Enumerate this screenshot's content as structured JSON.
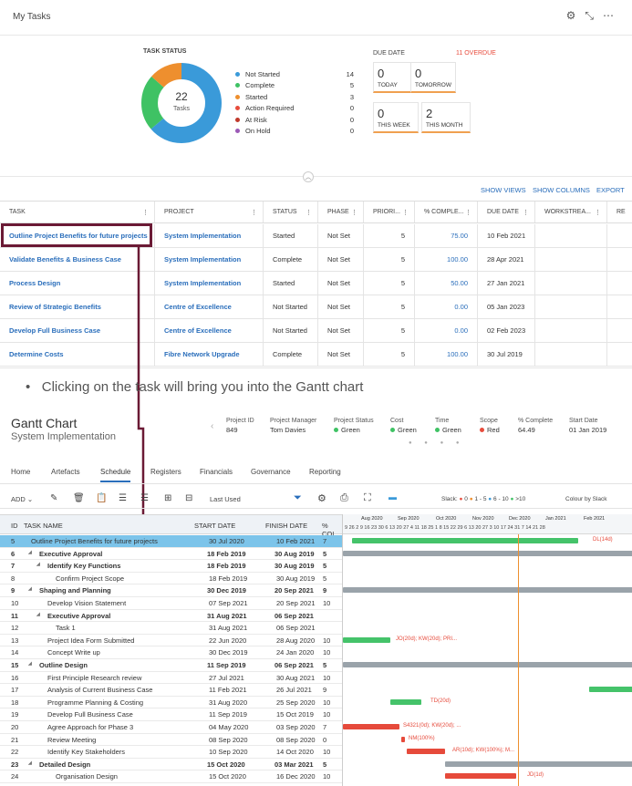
{
  "my_tasks": {
    "title": "My Tasks",
    "task_status_label": "TASK STATUS",
    "donut_total": "22",
    "donut_unit": "Tasks",
    "legend": [
      {
        "label": "Not Started",
        "count": "14",
        "color": "#3a9ad9"
      },
      {
        "label": "Complete",
        "count": "5",
        "color": "#3fc264"
      },
      {
        "label": "Started",
        "count": "3",
        "color": "#ee8f2e"
      },
      {
        "label": "Action Required",
        "count": "0",
        "color": "#e74c3c"
      },
      {
        "label": "At Risk",
        "count": "0",
        "color": "#c0392b"
      },
      {
        "label": "On Hold",
        "count": "0",
        "color": "#9b59b6"
      }
    ],
    "due_date_label": "DUE DATE",
    "overdue": "11 OVERDUE",
    "due": [
      {
        "n": "0",
        "l": "TODAY"
      },
      {
        "n": "0",
        "l": "TOMORROW"
      },
      {
        "n": "0",
        "l": "THIS WEEK"
      },
      {
        "n": "2",
        "l": "THIS MONTH"
      }
    ],
    "actions": {
      "views": "SHOW VIEWS",
      "columns": "SHOW COLUMNS",
      "export": "EXPORT"
    },
    "columns": [
      "TASK",
      "PROJECT",
      "STATUS",
      "PHASE",
      "PRIORI...",
      "% COMPLE...",
      "DUE DATE",
      "WORKSTREA...",
      "RE"
    ],
    "rows": [
      {
        "task": "Outline Project Benefits for future projects",
        "project": "System Implementation",
        "status": "Started",
        "phase": "Not Set",
        "priority": "5",
        "pct": "75.00",
        "due": "10 Feb 2021"
      },
      {
        "task": "Validate Benefits & Business Case",
        "project": "System Implementation",
        "status": "Complete",
        "phase": "Not Set",
        "priority": "5",
        "pct": "100.00",
        "due": "28 Apr 2021"
      },
      {
        "task": "Process Design",
        "project": "System Implementation",
        "status": "Started",
        "phase": "Not Set",
        "priority": "5",
        "pct": "50.00",
        "due": "27 Jan 2021"
      },
      {
        "task": "Review of Strategic Benefits",
        "project": "Centre of Excellence",
        "status": "Not Started",
        "phase": "Not Set",
        "priority": "5",
        "pct": "0.00",
        "due": "05 Jan 2023"
      },
      {
        "task": "Develop Full Business Case",
        "project": "Centre of Excellence",
        "status": "Not Started",
        "phase": "Not Set",
        "priority": "5",
        "pct": "0.00",
        "due": "02 Feb 2023"
      },
      {
        "task": "Determine Costs",
        "project": "Fibre Network Upgrade",
        "status": "Complete",
        "phase": "Not Set",
        "priority": "5",
        "pct": "100.00",
        "due": "30 Jul 2019"
      }
    ]
  },
  "bullet": "Clicking on the task will bring you into the Gantt chart",
  "gantt": {
    "title": "Gantt Chart",
    "subtitle": "System Implementation",
    "kpis": [
      {
        "l": "Project ID",
        "v": "849"
      },
      {
        "l": "Project Manager",
        "v": "Tom Davies"
      },
      {
        "l": "Project Status",
        "v": "Green",
        "c": "#3fc264"
      },
      {
        "l": "Cost",
        "v": "Green",
        "c": "#3fc264"
      },
      {
        "l": "Time",
        "v": "Green",
        "c": "#3fc264"
      },
      {
        "l": "Scope",
        "v": "Red",
        "c": "#e74c3c"
      },
      {
        "l": "% Complete",
        "v": "64.49"
      },
      {
        "l": "Start Date",
        "v": "01 Jan 2019"
      }
    ],
    "tabs": [
      "Home",
      "Artefacts",
      "Schedule",
      "Registers",
      "Financials",
      "Governance",
      "Reporting"
    ],
    "toolbar": {
      "add": "ADD",
      "last_used": "Last Used",
      "slack": "Slack:",
      "s1": "0",
      "s2": "1 - 5",
      "s3": "6 - 10",
      "s4": ">10",
      "colour": "Colour by Slack"
    },
    "cols": [
      "ID",
      "TASK NAME",
      "START DATE",
      "FINISH DATE",
      "% COI"
    ],
    "months": [
      "Aug 2020",
      "Sep 2020",
      "Oct 2020",
      "Nov 2020",
      "Dec 2020",
      "Jan 2021",
      "Feb 2021"
    ],
    "days": "9 26 2 9 16 23 30 6 13 20 27 4 11 18 25 1 8 15 22 29 6 13 20 27 3 10 17 24 31 7 14 21 28",
    "rows": [
      {
        "id": "5",
        "name": "Outline Project Benefits for future projects",
        "start": "30 Jul 2020",
        "finish": "10 Feb 2021",
        "pct": "7",
        "ind": 0,
        "b": false
      },
      {
        "id": "6",
        "name": "Executive Approval",
        "start": "18 Feb 2019",
        "finish": "30 Aug 2019",
        "pct": "5",
        "ind": 1,
        "b": true
      },
      {
        "id": "7",
        "name": "Identify Key Functions",
        "start": "18 Feb 2019",
        "finish": "30 Aug 2019",
        "pct": "5",
        "ind": 2,
        "b": true
      },
      {
        "id": "8",
        "name": "Confirm Project Scope",
        "start": "18 Feb 2019",
        "finish": "30 Aug 2019",
        "pct": "5",
        "ind": 3,
        "b": false
      },
      {
        "id": "9",
        "name": "Shaping and Planning",
        "start": "30 Dec 2019",
        "finish": "20 Sep 2021",
        "pct": "9",
        "ind": 1,
        "b": true
      },
      {
        "id": "10",
        "name": "Develop Vision Statement",
        "start": "07 Sep 2021",
        "finish": "20 Sep 2021",
        "pct": "10",
        "ind": 2,
        "b": false
      },
      {
        "id": "11",
        "name": "Executive Approval",
        "start": "31 Aug 2021",
        "finish": "06 Sep 2021",
        "pct": "",
        "ind": 2,
        "b": true
      },
      {
        "id": "12",
        "name": "Task 1",
        "start": "31 Aug 2021",
        "finish": "06 Sep 2021",
        "pct": "",
        "ind": 3,
        "b": false
      },
      {
        "id": "13",
        "name": "Project Idea Form Submitted",
        "start": "22 Jun 2020",
        "finish": "28 Aug 2020",
        "pct": "10",
        "ind": 2,
        "b": false
      },
      {
        "id": "14",
        "name": "Concept Write up",
        "start": "30 Dec 2019",
        "finish": "24 Jan 2020",
        "pct": "10",
        "ind": 2,
        "b": false
      },
      {
        "id": "15",
        "name": "Outline Design",
        "start": "11 Sep 2019",
        "finish": "06 Sep 2021",
        "pct": "5",
        "ind": 1,
        "b": true
      },
      {
        "id": "16",
        "name": "First Principle Research review",
        "start": "27 Jul 2021",
        "finish": "30 Aug 2021",
        "pct": "10",
        "ind": 2,
        "b": false
      },
      {
        "id": "17",
        "name": "Analysis of Current Business Case",
        "start": "11 Feb 2021",
        "finish": "26 Jul 2021",
        "pct": "9",
        "ind": 2,
        "b": false
      },
      {
        "id": "18",
        "name": "Programme Planning & Costing",
        "start": "31 Aug 2020",
        "finish": "25 Sep 2020",
        "pct": "10",
        "ind": 2,
        "b": false
      },
      {
        "id": "19",
        "name": "Develop Full Business Case",
        "start": "11 Sep 2019",
        "finish": "15 Oct 2019",
        "pct": "10",
        "ind": 2,
        "b": false
      },
      {
        "id": "20",
        "name": "Agree Approach for Phase 3",
        "start": "04 May 2020",
        "finish": "03 Sep 2020",
        "pct": "7",
        "ind": 2,
        "b": false
      },
      {
        "id": "21",
        "name": "Review Meeting",
        "start": "08 Sep 2020",
        "finish": "08 Sep 2020",
        "pct": "0",
        "ind": 2,
        "b": false
      },
      {
        "id": "22",
        "name": "Identify Key Stakeholders",
        "start": "10 Sep 2020",
        "finish": "14 Oct 2020",
        "pct": "10",
        "ind": 2,
        "b": false
      },
      {
        "id": "23",
        "name": "Detailed Design",
        "start": "15 Oct 2020",
        "finish": "03 Mar 2021",
        "pct": "5",
        "ind": 1,
        "b": true
      },
      {
        "id": "24",
        "name": "Organisation Design",
        "start": "15 Oct 2020",
        "finish": "16 Dec 2020",
        "pct": "10",
        "ind": 3,
        "b": false
      }
    ],
    "bar_labels": {
      "r5": "DL(14d)",
      "r13": "JO(20d); KW(20d); PRI...",
      "r18": "TD(20d)",
      "r20": "S4321(0d); KW(20d); ...",
      "r21": "NM(100%)",
      "r22": "AR(10d); KW(100%); M...",
      "r24": "JD(1d)"
    }
  }
}
